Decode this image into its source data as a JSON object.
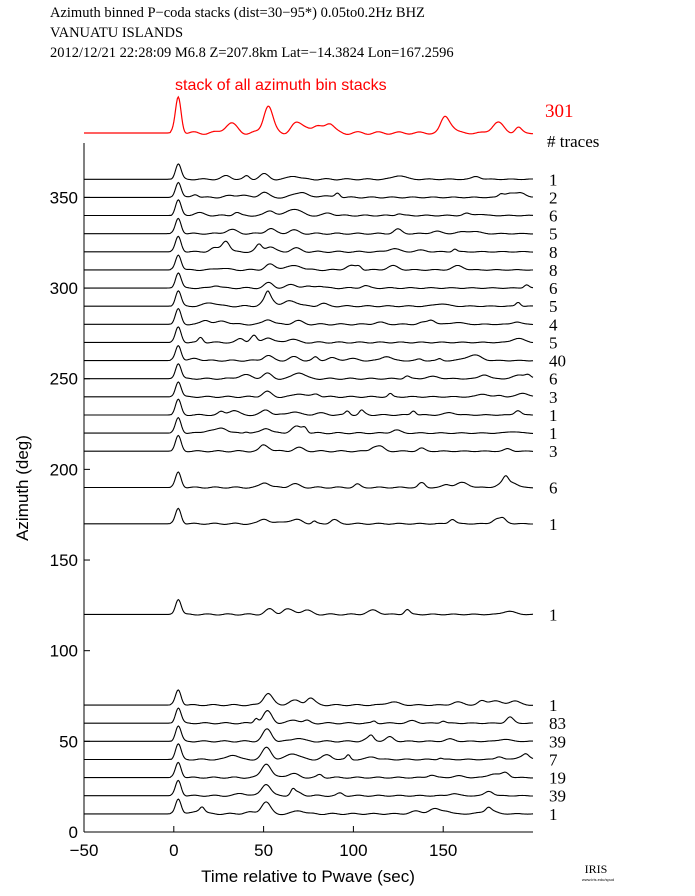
{
  "header": {
    "line1": "Azimuth binned P−coda stacks (dist=30−95*)  0.05to0.2Hz  BHZ",
    "line2": "VANUATU ISLANDS",
    "line3": "2012/12/21   22:28:09   M6.8   Z=207.8km  Lat=−14.3824  Lon=167.2596"
  },
  "stack_panel": {
    "label": "stack of all azimuth bin stacks",
    "total_traces": "301",
    "traces_label": "# traces",
    "color": "#ff0000"
  },
  "logo": {
    "text": "IRIS",
    "subtext": "www.iris.edu/spud"
  },
  "chart_data": {
    "type": "line",
    "xlabel": "Time relative to Pwave (sec)",
    "ylabel": "Azimuth (deg)",
    "xlim": [
      -50,
      200
    ],
    "ylim": [
      0,
      380
    ],
    "xticks": [
      -50,
      0,
      50,
      100,
      150
    ],
    "yticks": [
      0,
      50,
      100,
      150,
      200,
      250,
      300,
      350
    ],
    "grid": false,
    "trace_color": "#000000",
    "series": [
      {
        "azimuth": 360,
        "traces": "1"
      },
      {
        "azimuth": 350,
        "traces": "2"
      },
      {
        "azimuth": 340,
        "traces": "6"
      },
      {
        "azimuth": 330,
        "traces": "5"
      },
      {
        "azimuth": 320,
        "traces": "8"
      },
      {
        "azimuth": 310,
        "traces": "8"
      },
      {
        "azimuth": 300,
        "traces": "6"
      },
      {
        "azimuth": 290,
        "traces": "5"
      },
      {
        "azimuth": 280,
        "traces": "4"
      },
      {
        "azimuth": 270,
        "traces": "5"
      },
      {
        "azimuth": 260,
        "traces": "40"
      },
      {
        "azimuth": 250,
        "traces": "6"
      },
      {
        "azimuth": 240,
        "traces": "3"
      },
      {
        "azimuth": 230,
        "traces": "1"
      },
      {
        "azimuth": 220,
        "traces": "1"
      },
      {
        "azimuth": 210,
        "traces": "3"
      },
      {
        "azimuth": 190,
        "traces": "6"
      },
      {
        "azimuth": 170,
        "traces": "1"
      },
      {
        "azimuth": 120,
        "traces": "1"
      },
      {
        "azimuth": 70,
        "traces": "1"
      },
      {
        "azimuth": 60,
        "traces": "83"
      },
      {
        "azimuth": 50,
        "traces": "39"
      },
      {
        "azimuth": 40,
        "traces": "7"
      },
      {
        "azimuth": 30,
        "traces": "19"
      },
      {
        "azimuth": 20,
        "traces": "39"
      },
      {
        "azimuth": 10,
        "traces": "1"
      }
    ]
  }
}
